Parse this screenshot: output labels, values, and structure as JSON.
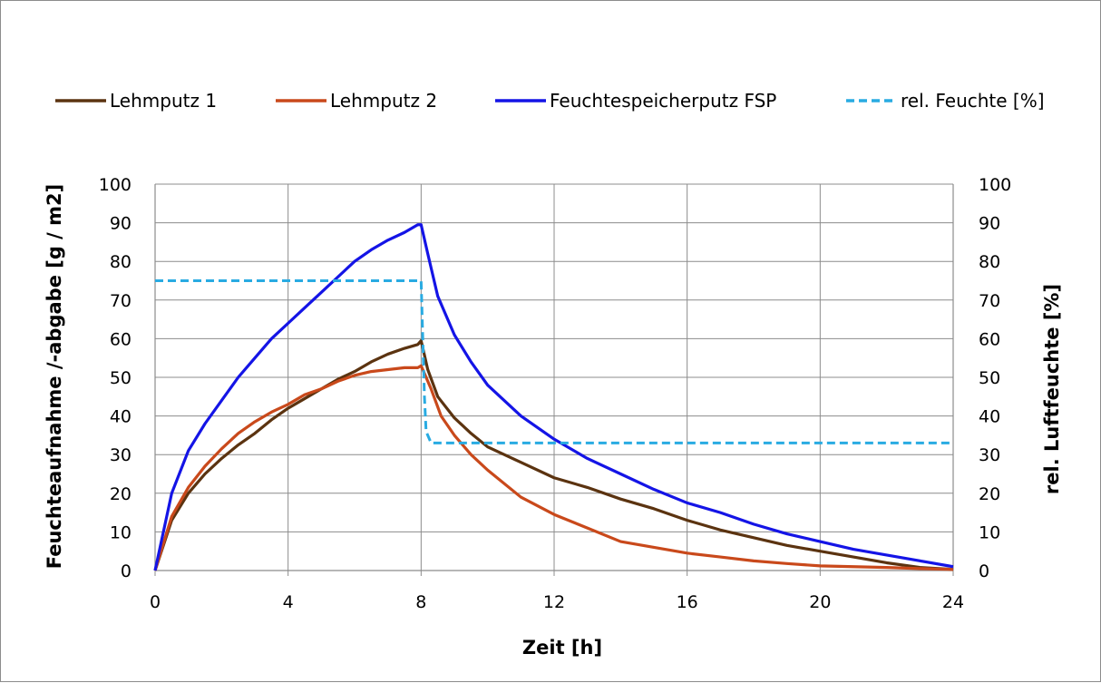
{
  "chart_data": {
    "type": "line",
    "xlabel": "Zeit [h]",
    "ylabel": "Feuchteaufnahme /-abgabe [g / m2]",
    "y2label": "rel. Luftfeuchte [%]",
    "xlim": [
      0,
      24
    ],
    "ylim": [
      0,
      100
    ],
    "y2lim": [
      0,
      100
    ],
    "xticks": [
      "0",
      "4",
      "8",
      "12",
      "16",
      "20",
      "24"
    ],
    "yticks": [
      "0",
      "10",
      "20",
      "30",
      "40",
      "50",
      "60",
      "70",
      "80",
      "90",
      "100"
    ],
    "y2ticks": [
      "0",
      "10",
      "20",
      "30",
      "40",
      "50",
      "60",
      "70",
      "80",
      "90",
      "100"
    ],
    "grid": true,
    "legend_position": "top",
    "series": [
      {
        "name": "Lehmputz 1",
        "color": "#5b3310",
        "dash": "solid",
        "axis": "left",
        "x": [
          0,
          0.5,
          1,
          1.5,
          2,
          2.5,
          3,
          3.5,
          4,
          4.5,
          5,
          5.5,
          6,
          6.5,
          7,
          7.5,
          7.9,
          8.0,
          8.2,
          8.5,
          9,
          9.5,
          10,
          11,
          12,
          13,
          14,
          15,
          16,
          17,
          18,
          19,
          20,
          21,
          22,
          23,
          24
        ],
        "y": [
          0,
          13,
          20,
          25,
          29,
          32.5,
          35.5,
          39,
          42,
          44.5,
          47,
          49.5,
          51.5,
          54,
          56,
          57.5,
          58.5,
          59.5,
          52,
          45,
          39.5,
          35.5,
          32,
          28,
          24,
          21.5,
          18.5,
          16,
          13,
          10.5,
          8.5,
          6.5,
          5,
          3.5,
          2,
          0.8,
          0.3
        ]
      },
      {
        "name": "Lehmputz 2",
        "color": "#c9491b",
        "dash": "solid",
        "axis": "left",
        "x": [
          0,
          0.5,
          1,
          1.5,
          2,
          2.5,
          3,
          3.5,
          4,
          4.5,
          5,
          5.5,
          6,
          6.5,
          7,
          7.5,
          7.9,
          8.0,
          8.3,
          8.6,
          9,
          9.5,
          10,
          11,
          12,
          13,
          14,
          15,
          16,
          17,
          18,
          19,
          20,
          21,
          22,
          23,
          24
        ],
        "y": [
          0,
          14,
          21.5,
          27,
          31.5,
          35.5,
          38.5,
          41,
          43,
          45.5,
          47,
          49,
          50.5,
          51.5,
          52,
          52.5,
          52.5,
          53,
          47,
          40,
          35,
          30,
          26,
          19,
          14.5,
          11,
          7.5,
          6,
          4.5,
          3.5,
          2.5,
          1.8,
          1.2,
          1,
          0.8,
          0.5,
          0.3
        ]
      },
      {
        "name": "Feuchtespeicherputz FSP",
        "color": "#1414e6",
        "dash": "solid",
        "axis": "left",
        "x": [
          0,
          0.5,
          1,
          1.5,
          2,
          2.5,
          3,
          3.5,
          4,
          4.5,
          5,
          5.5,
          6,
          6.5,
          7,
          7.5,
          7.9,
          8.0,
          8.2,
          8.5,
          9,
          9.5,
          10,
          11,
          12,
          13,
          14,
          15,
          16,
          17,
          18,
          19,
          20,
          21,
          22,
          23,
          24
        ],
        "y": [
          0,
          20,
          31,
          38,
          44,
          50,
          55,
          60,
          64,
          68,
          72,
          76,
          80,
          83,
          85.5,
          87.5,
          89.5,
          89.5,
          82,
          71,
          61,
          54,
          48,
          40,
          34,
          29,
          25,
          21,
          17.5,
          15,
          12,
          9.5,
          7.5,
          5.5,
          4,
          2.5,
          1
        ]
      },
      {
        "name": "rel. Feuchte [%]",
        "color": "#29abe2",
        "dash": "dashed",
        "axis": "right",
        "x": [
          0,
          1,
          2,
          3,
          4,
          5,
          6,
          7,
          7.9,
          8.0,
          8.05,
          8.1,
          8.15,
          8.3,
          8.6,
          9,
          10,
          12,
          14,
          16,
          18,
          20,
          22,
          24
        ],
        "y": [
          75,
          75,
          75,
          75,
          75,
          75,
          75,
          75,
          75,
          75,
          60,
          45,
          36,
          33,
          33,
          33,
          33,
          33,
          33,
          33,
          33,
          33,
          33,
          33
        ]
      }
    ]
  }
}
